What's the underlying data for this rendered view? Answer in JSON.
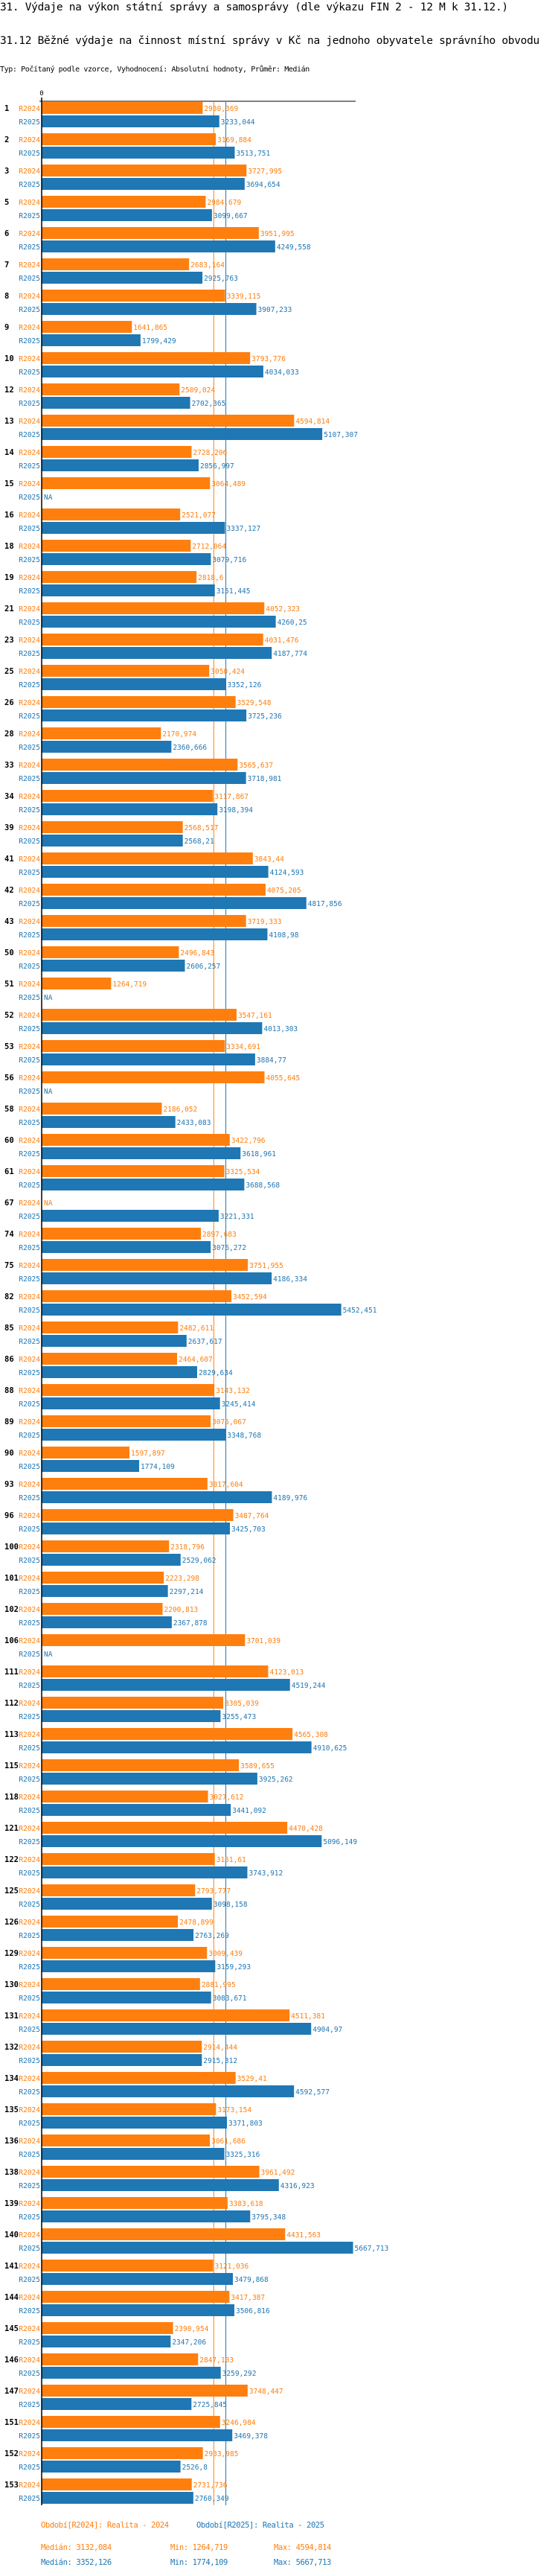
{
  "header": {
    "title": "31. Výdaje na výkon státní správy a samosprávy (dle výkazu FIN 2 - 12 M k 31.12.)",
    "subtitle": "31.12 Běžné výdaje na činnost místní správy v Kč na jednoho obyvatele správního obvodu",
    "meta": "Typ: Počítaný podle vzorce, Vyhodnocení: Absolutní hodnoty, Průměr: Medián"
  },
  "colors": {
    "r2024": "#ff7f0e",
    "r2025": "#1f77b4",
    "axis": "#000000"
  },
  "chart_data": {
    "type": "bar",
    "orientation": "horizontal",
    "title": "31.12 Běžné výdaje na činnost místní správy v Kč na jednoho obyvatele správního obvodu",
    "xlabel": "",
    "ylabel": "",
    "x_ticks": [
      "0"
    ],
    "xlim": [
      0,
      5800
    ],
    "grid": false,
    "missing_label": "NA",
    "categories": [
      "1",
      "2",
      "3",
      "5",
      "6",
      "7",
      "8",
      "9",
      "10",
      "12",
      "13",
      "14",
      "15",
      "16",
      "18",
      "19",
      "21",
      "23",
      "25",
      "26",
      "28",
      "33",
      "34",
      "39",
      "41",
      "42",
      "43",
      "50",
      "51",
      "52",
      "53",
      "56",
      "58",
      "60",
      "61",
      "67",
      "74",
      "75",
      "82",
      "85",
      "86",
      "88",
      "89",
      "90",
      "93",
      "96",
      "100",
      "101",
      "102",
      "106",
      "111",
      "112",
      "113",
      "115",
      "118",
      "121",
      "122",
      "125",
      "126",
      "129",
      "130",
      "131",
      "132",
      "134",
      "135",
      "136",
      "138",
      "139",
      "140",
      "141",
      "144",
      "145",
      "146",
      "147",
      "151",
      "152",
      "153"
    ],
    "series": [
      {
        "name": "R2024",
        "values": [
          2930.369,
          3169.884,
          3727.995,
          2984.679,
          3951.995,
          2683.164,
          3339.115,
          1641.865,
          3793.776,
          2509.024,
          4594.814,
          2728.206,
          3064.489,
          2521.077,
          2712.064,
          2818.6,
          4052.323,
          4031.476,
          3050.424,
          3529.548,
          2170.974,
          3565.637,
          3117.867,
          2568.517,
          3843.44,
          4075.205,
          3719.333,
          2496.843,
          1264.719,
          3547.161,
          3334.691,
          4055.645,
          2186.052,
          3422.796,
          3325.534,
          null,
          2897.683,
          3751.955,
          3452.594,
          2482.611,
          2464.607,
          3143.132,
          3075.067,
          1597.897,
          3017.604,
          3487.764,
          2318.796,
          2223.298,
          2200.813,
          3701.039,
          4123.013,
          3305.039,
          4565.308,
          3589.655,
          3027.612,
          4470.428,
          3151.61,
          2793.777,
          2478.899,
          3009.439,
          2881.995,
          4511.381,
          2914.444,
          3529.41,
          3173.154,
          3061.686,
          3961.492,
          3383.618,
          4431.563,
          3121.036,
          3417.387,
          2390.954,
          2847.103,
          3748.447,
          3246.984,
          2933.985,
          2731.736
        ]
      },
      {
        "name": "R2025",
        "values": [
          3233.044,
          3513.751,
          3694.654,
          3099.667,
          4249.558,
          2925.763,
          3907.233,
          1799.429,
          4034.033,
          2702.365,
          5107.307,
          2856.997,
          null,
          3337.127,
          3079.716,
          3151.445,
          4260.25,
          4187.774,
          3352.126,
          3725.236,
          2360.666,
          3718.981,
          3198.394,
          2568.21,
          4124.593,
          4817.856,
          4108.98,
          2606.257,
          null,
          4013.303,
          3884.77,
          null,
          2433.083,
          3618.961,
          3688.568,
          3221.331,
          3076.272,
          4186.334,
          5452.451,
          2637.617,
          2829.634,
          3245.414,
          3348.768,
          1774.109,
          4189.976,
          3425.703,
          2529.062,
          2297.214,
          2367.878,
          null,
          4519.244,
          3255.473,
          4910.625,
          3925.262,
          3441.092,
          5096.149,
          3743.912,
          3098.158,
          2763.269,
          3159.293,
          3083.671,
          4904.97,
          2915.312,
          4592.577,
          3371.803,
          3325.316,
          4316.923,
          3795.348,
          5667.713,
          3479.868,
          3506.816,
          2347.206,
          3259.292,
          2725.845,
          3469.378,
          2526.8,
          2760.349
        ]
      }
    ],
    "reference_lines": [
      {
        "series": "R2024",
        "label": "Medián",
        "value": 3132.084
      },
      {
        "series": "R2025",
        "label": "Medián",
        "value": 3352.126
      }
    ],
    "legend": {
      "placement": "bottom",
      "entries": [
        {
          "series": "R2024",
          "text": "Období[R2024]: Realita - 2024"
        },
        {
          "series": "R2025",
          "text": "Období[R2025]: Realita - 2025"
        }
      ]
    },
    "stats": {
      "R2024": {
        "median": "Medián: 3132,084",
        "min": "Min: 1264,719",
        "max": "Max: 4594,814"
      },
      "R2025": {
        "median": "Medián: 3352,126",
        "min": "Min: 1774,109",
        "max": "Max: 5667,713"
      }
    }
  }
}
